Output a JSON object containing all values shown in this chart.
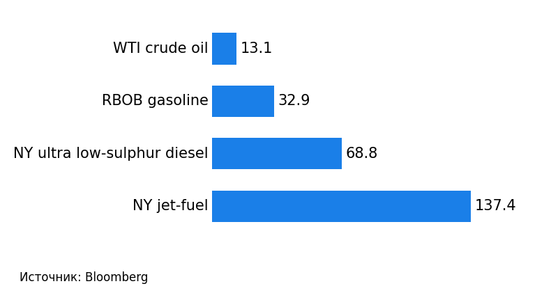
{
  "categories": [
    "WTI crude oil",
    "RBOB gasoline",
    "NY ultra low-sulphur diesel",
    "NY jet-fuel"
  ],
  "values": [
    13.1,
    32.9,
    68.8,
    137.4
  ],
  "bar_color": "#1a7fe8",
  "background_color": "#ffffff",
  "value_labels": [
    "13.1",
    "32.9",
    "68.8",
    "137.4"
  ],
  "source_text": "Источник: Bloomberg",
  "label_fontsize": 15,
  "value_fontsize": 15,
  "source_fontsize": 12,
  "bar_height": 0.6,
  "xlim": [
    0,
    160
  ],
  "label_fontweight": "normal",
  "value_fontweight": "normal"
}
